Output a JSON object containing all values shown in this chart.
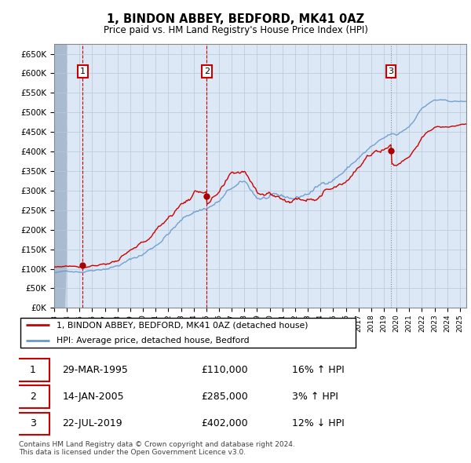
{
  "title": "1, BINDON ABBEY, BEDFORD, MK41 0AZ",
  "subtitle": "Price paid vs. HM Land Registry's House Price Index (HPI)",
  "ylim": [
    0,
    675000
  ],
  "yticks": [
    0,
    50000,
    100000,
    150000,
    200000,
    250000,
    300000,
    350000,
    400000,
    450000,
    500000,
    550000,
    600000,
    650000
  ],
  "xlim_start": 1993,
  "xlim_end": 2025.5,
  "sale_year_floats": [
    1995.25,
    2005.04,
    2019.56
  ],
  "sale_prices": [
    110000,
    285000,
    402000
  ],
  "sale_labels": [
    "1",
    "2",
    "3"
  ],
  "vline_colors": [
    "#cc0000",
    "#cc0000",
    "#888888"
  ],
  "vline_styles": [
    "--",
    "--",
    ":"
  ],
  "hpi_line_color": "#6699cc",
  "price_line_color": "#cc0000",
  "plot_bg_color": "#dce8f5",
  "hatch_area_color": "#c0ccd8",
  "label_box_color": "#cc0000",
  "legend_entries": [
    "1, BINDON ABBEY, BEDFORD, MK41 0AZ (detached house)",
    "HPI: Average price, detached house, Bedford"
  ],
  "table_data": [
    [
      "1",
      "29-MAR-1995",
      "£110,000",
      "16% ↑ HPI"
    ],
    [
      "2",
      "14-JAN-2005",
      "£285,000",
      "3% ↑ HPI"
    ],
    [
      "3",
      "22-JUL-2019",
      "£402,000",
      "12% ↓ HPI"
    ]
  ],
  "footer": "Contains HM Land Registry data © Crown copyright and database right 2024.\nThis data is licensed under the Open Government Licence v3.0."
}
